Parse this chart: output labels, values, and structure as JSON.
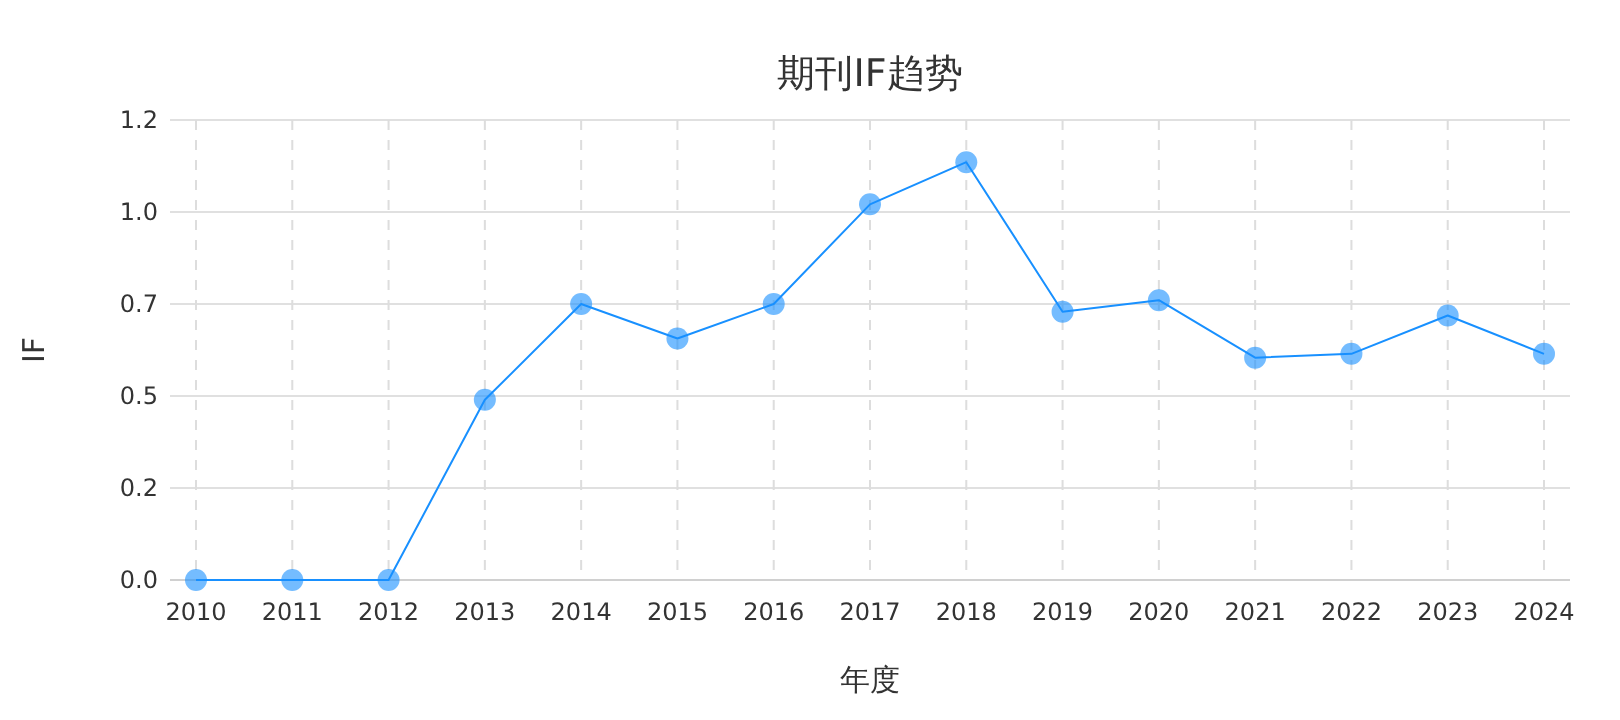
{
  "chart_data": {
    "type": "line",
    "title": "期刊IF趋势",
    "xlabel": "年度",
    "ylabel": "IF",
    "categories": [
      "2010",
      "2011",
      "2012",
      "2013",
      "2014",
      "2015",
      "2016",
      "2017",
      "2018",
      "2019",
      "2020",
      "2021",
      "2022",
      "2023",
      "2024"
    ],
    "series": [
      {
        "color": "#1890ff",
        "values": [
          0,
          0,
          0,
          0.47,
          0.72,
          0.63,
          0.72,
          0.98,
          1.09,
          0.7,
          0.73,
          0.58,
          0.59,
          0.69,
          0.59
        ]
      }
    ],
    "ylim": [
      0,
      1.2
    ],
    "yticks": [
      {
        "value": 0,
        "label": "0.0"
      },
      {
        "value": 0.24,
        "label": "0.2"
      },
      {
        "value": 0.48,
        "label": "0.5"
      },
      {
        "value": 0.72,
        "label": "0.7"
      },
      {
        "value": 0.96,
        "label": "1.0"
      },
      {
        "value": 1.2,
        "label": "1.2"
      }
    ],
    "grid": true,
    "marker": "circle",
    "line_style": "solid"
  }
}
